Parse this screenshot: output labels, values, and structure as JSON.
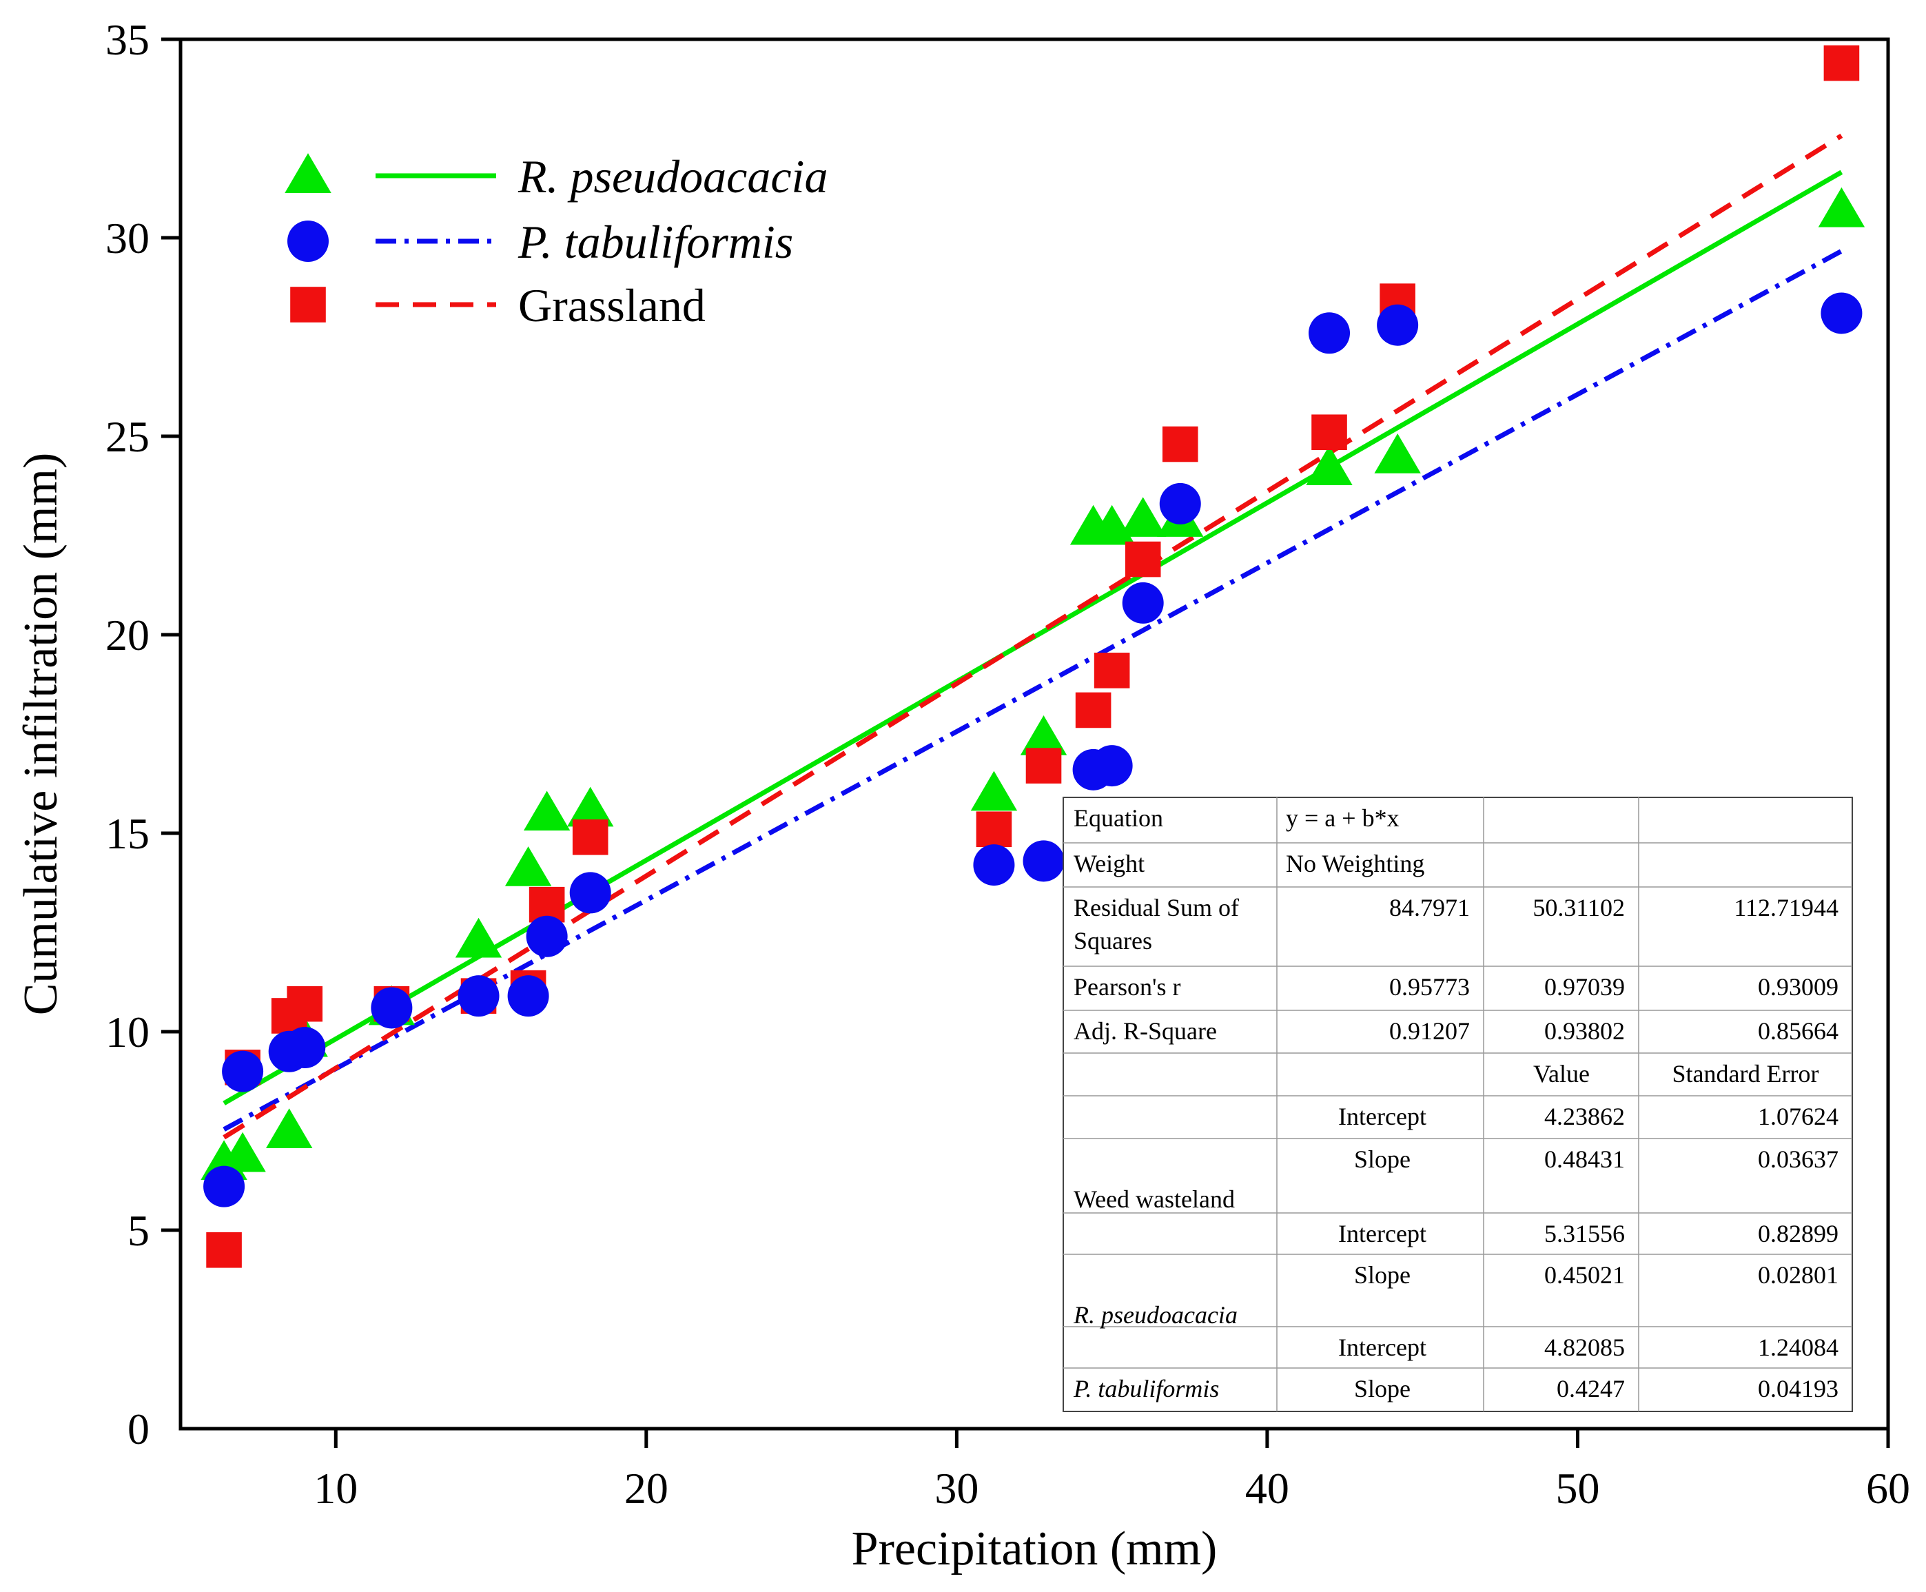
{
  "chart_data": {
    "type": "scatter",
    "title": "",
    "xlabel": "Precipitation (mm)",
    "ylabel": "Cumulative infiltration (mm)",
    "xlim": [
      5,
      60
    ],
    "ylim": [
      0,
      35
    ],
    "xticks": [
      10,
      20,
      30,
      40,
      50,
      60
    ],
    "yticks": [
      0,
      5,
      10,
      15,
      20,
      25,
      30,
      35
    ],
    "grid": false,
    "legend_position": "top-left",
    "series": [
      {
        "name": "R. pseudoacacia",
        "name_italic": true,
        "color": "#00e600",
        "marker": "triangle",
        "line_style": "solid",
        "x": [
          6.4,
          7.0,
          8.5,
          9.0,
          11.8,
          14.6,
          16.2,
          16.8,
          18.2,
          31.2,
          32.8,
          34.4,
          35.0,
          36.0,
          37.2,
          42.0,
          44.2,
          58.5
        ],
        "y": [
          6.7,
          6.9,
          7.5,
          9.8,
          10.6,
          12.3,
          14.1,
          15.5,
          15.6,
          16.0,
          17.4,
          22.7,
          22.7,
          22.9,
          22.9,
          24.2,
          24.5,
          30.7
        ],
        "fit": {
          "intercept": 5.31556,
          "slope": 0.45021,
          "x_range": [
            6.4,
            58.5
          ]
        }
      },
      {
        "name": "P. tabuliformis",
        "name_italic": true,
        "color": "#0a0af0",
        "marker": "circle",
        "line_style": "dashdot",
        "x": [
          6.4,
          7.0,
          8.5,
          9.0,
          11.8,
          14.6,
          16.2,
          16.8,
          18.2,
          31.2,
          32.8,
          34.4,
          35.0,
          36.0,
          37.2,
          42.0,
          44.2,
          58.5
        ],
        "y": [
          6.1,
          9.0,
          9.5,
          9.6,
          10.6,
          10.9,
          10.9,
          12.4,
          13.5,
          14.2,
          14.3,
          16.6,
          16.7,
          20.8,
          23.3,
          27.6,
          27.8,
          28.1
        ],
        "fit": {
          "intercept": 4.82085,
          "slope": 0.4247,
          "x_range": [
            6.4,
            58.5
          ]
        }
      },
      {
        "name": "Grassland",
        "name_italic": false,
        "color": "#f01010",
        "marker": "square",
        "line_style": "dashed",
        "x": [
          6.4,
          7.0,
          8.5,
          9.0,
          11.8,
          14.6,
          16.2,
          16.8,
          18.2,
          31.2,
          32.8,
          34.4,
          35.0,
          36.0,
          37.2,
          42.0,
          44.2,
          58.5
        ],
        "y": [
          4.5,
          9.1,
          10.4,
          10.7,
          10.7,
          10.9,
          11.1,
          13.2,
          14.9,
          15.1,
          16.7,
          18.1,
          19.1,
          21.9,
          24.8,
          25.1,
          28.4,
          34.4
        ],
        "fit": {
          "intercept": 4.23862,
          "slope": 0.48431,
          "x_range": [
            6.4,
            58.5
          ]
        }
      }
    ],
    "stats_table": {
      "rows": [
        {
          "c0": "Equation",
          "c1": "y = a + b*x",
          "c2": "",
          "c3": ""
        },
        {
          "c0": "Weight",
          "c1": "No Weighting",
          "c2": "",
          "c3": ""
        },
        {
          "c0": "Residual Sum of",
          "c0b": "Squares",
          "c1": "84.7971",
          "c2": "50.31102",
          "c3": "112.71944"
        },
        {
          "c0": "Pearson's r",
          "c1": "0.95773",
          "c2": "0.97039",
          "c3": "0.93009"
        },
        {
          "c0": "Adj. R-Square",
          "c1": "0.91207",
          "c2": "0.93802",
          "c3": "0.85664"
        },
        {
          "c0": "",
          "c1": "",
          "c2": "Value",
          "c3": "Standard Error"
        },
        {
          "c0": "",
          "c1": "Intercept",
          "c2": "4.23862",
          "c3": "1.07624"
        },
        {
          "c0": "Weed wasteland",
          "c1": "Slope",
          "c2": "0.48431",
          "c3": "0.03637"
        },
        {
          "c0": "",
          "c1": "Intercept",
          "c2": "5.31556",
          "c3": "0.82899"
        },
        {
          "c0": "R. pseudoacacia",
          "c1": "Slope",
          "c2": "0.45021",
          "c3": "0.02801"
        },
        {
          "c0": "",
          "c1": "Intercept",
          "c2": "4.82085",
          "c3": "1.24084"
        },
        {
          "c0": "P. tabuliformis",
          "c1": "Slope",
          "c2": "0.4247",
          "c3": "0.04193"
        }
      ]
    }
  }
}
